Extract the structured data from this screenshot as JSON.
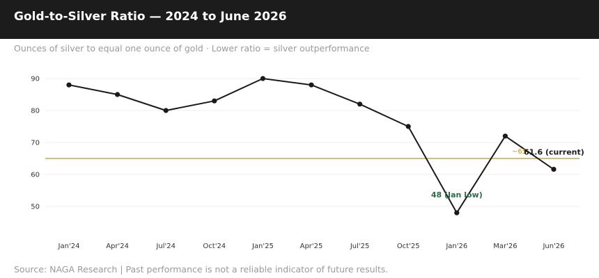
{
  "header": {
    "title": "Gold-to-Silver Ratio — 2024 to June 2026",
    "subtitle": "Ounces of silver to equal one ounce of gold · Lower ratio = silver outperformance"
  },
  "footer": {
    "source": "Source: NAGA Research  |  Past performance is not a reliable indicator of future results."
  },
  "colors": {
    "header_bg": "#1c1c1c",
    "line": "#1a1a1a",
    "reference_line": "#b8962e",
    "low_annotation": "#2e6b45",
    "current_annotation": "#1a1a1a",
    "grid": "#ececec"
  },
  "chart_data": {
    "type": "line",
    "categories": [
      "Jan'24",
      "Apr'24",
      "Jul'24",
      "Oct'24",
      "Jan'25",
      "Apr'25",
      "Jul'25",
      "Oct'25",
      "Jan'26",
      "Mar'26",
      "Jun'26"
    ],
    "series": [
      {
        "values": [
          88,
          85,
          80,
          83,
          90,
          88,
          82,
          75,
          48,
          72,
          61.6
        ]
      }
    ],
    "yticks": [
      50,
      60,
      70,
      80,
      90
    ],
    "ylim": [
      40,
      96
    ],
    "reference_line": {
      "value": 65,
      "label": "~65"
    },
    "annotations": [
      {
        "text": "48 (Jan low)",
        "category": "Jan'26",
        "value": 48,
        "position": "above"
      },
      {
        "text": "61.6 (current)",
        "category": "Jun'26",
        "value": 61.6,
        "position": "above"
      }
    ],
    "grid": true,
    "legend": "none"
  }
}
